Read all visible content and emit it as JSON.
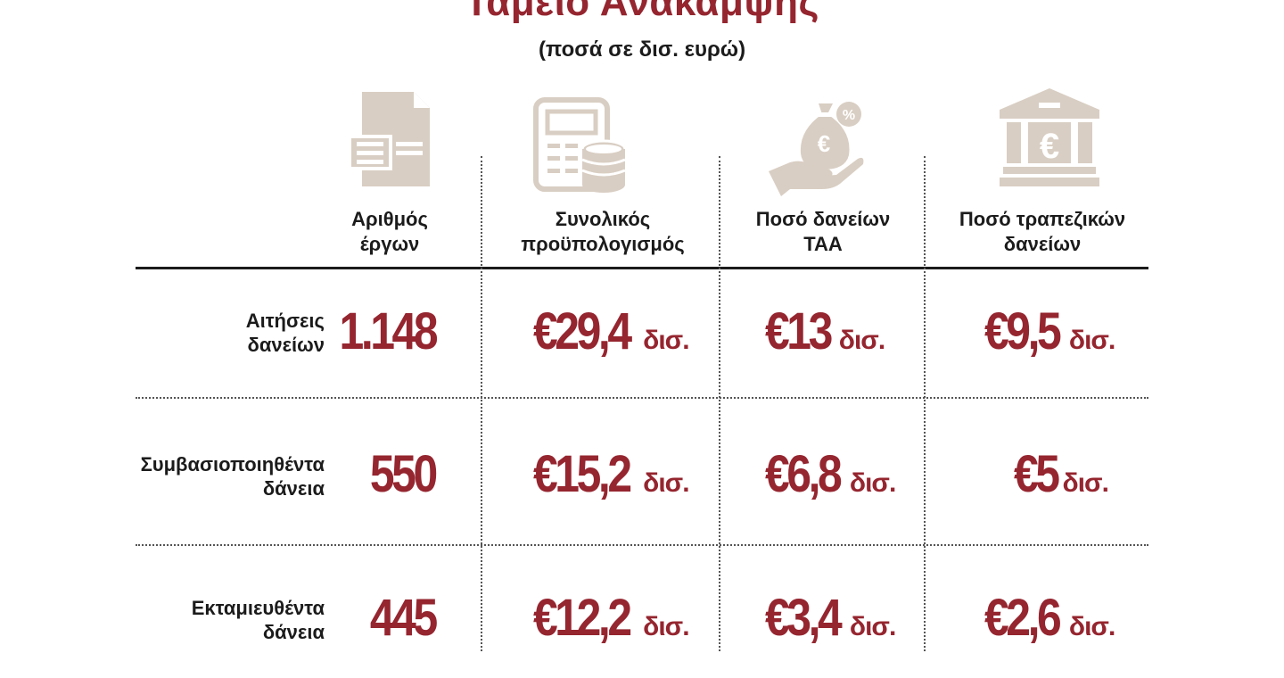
{
  "chart_data": {
    "type": "table",
    "title": "Ταμείο Ανάκαμψης",
    "subtitle": "(ποσά σε δισ. ευρώ)",
    "columns": [
      {
        "label_1": "Αριθμός",
        "label_2": "έργων",
        "icon": "document-icon"
      },
      {
        "label_1": "Συνολικός",
        "label_2": "προϋπολογισμός",
        "icon": "calculator-coins-icon"
      },
      {
        "label_1": "Ποσό δανείων",
        "label_2": "ΤΑΑ",
        "icon": "hand-money-bag-icon"
      },
      {
        "label_1": "Ποσό τραπεζικών",
        "label_2": "δανείων",
        "icon": "bank-euro-icon"
      }
    ],
    "rows": [
      {
        "label_1": "Αιτήσεις",
        "label_2": "δανείων",
        "count": "1.148",
        "cells": [
          {
            "value": "€29,4",
            "unit": "δισ."
          },
          {
            "value": "€13",
            "unit": "δισ."
          },
          {
            "value": "€9,5",
            "unit": "δισ."
          }
        ]
      },
      {
        "label_1": "Συμβασιοποιηθέντα",
        "label_2": "δάνεια",
        "count": "550",
        "cells": [
          {
            "value": "€15,2",
            "unit": "δισ."
          },
          {
            "value": "€6,8",
            "unit": "δισ."
          },
          {
            "value": "€5",
            "unit": "δισ."
          }
        ]
      },
      {
        "label_1": "Εκταμιευθέντα",
        "label_2": "δάνεια",
        "count": "445",
        "cells": [
          {
            "value": "€12,2",
            "unit": "δισ."
          },
          {
            "value": "€3,4",
            "unit": "δισ."
          },
          {
            "value": "€2,6",
            "unit": "δισ."
          }
        ]
      }
    ],
    "colors": {
      "accent": "#95252f",
      "text": "#1b1b1b",
      "icon": "#d9cec3"
    }
  }
}
